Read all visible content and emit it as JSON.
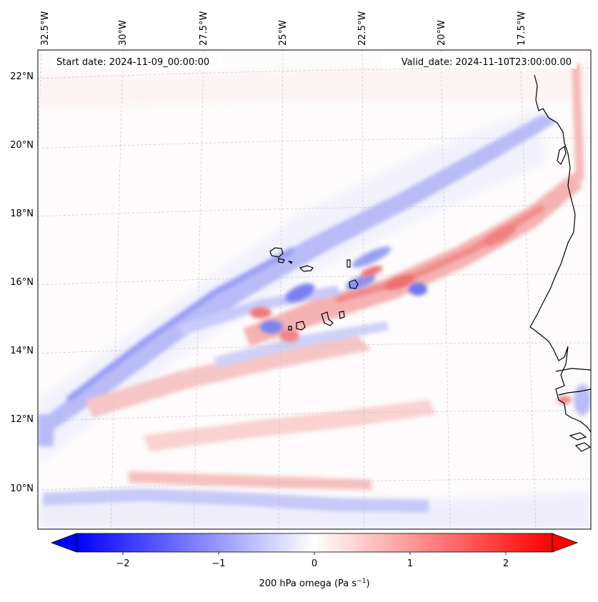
{
  "map": {
    "start_date_label": "Start date: 2024-11-09_00:00:00",
    "valid_date_label": "Valid_date: 2024-11-10T23:00:00.00",
    "lon_labels": [
      "32.5°W",
      "30°W",
      "27.5°W",
      "25°W",
      "22.5°W",
      "20°W",
      "17.5°W"
    ],
    "lat_labels": [
      "22°N",
      "20°N",
      "18°N",
      "16°N",
      "14°N",
      "12°N",
      "10°N"
    ],
    "field": "200 hPa omega",
    "colormap": "bwr",
    "coastline_color": "#000000"
  },
  "colorbar": {
    "label_text": "200 hPa omega (Pa s",
    "label_exponent": "−1",
    "label_close": ")",
    "ticks": [
      "−2",
      "−1",
      "0",
      "1",
      "2"
    ],
    "vmin": -2.6,
    "vmax": 2.6,
    "extend": "both",
    "low_color": "#0000ff",
    "mid_color": "#ffffff",
    "high_color": "#ff0000"
  }
}
